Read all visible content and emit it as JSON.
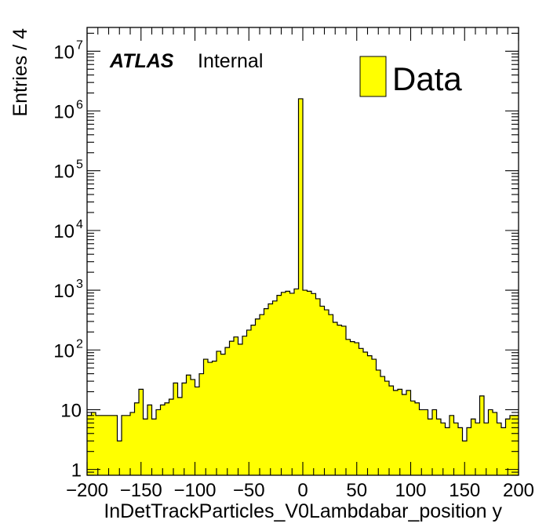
{
  "chart_data": {
    "type": "bar",
    "histogram": true,
    "xlabel": "InDetTrackParticles_V0Lambdabar_position y",
    "ylabel": "Entries / 4",
    "log_y": true,
    "xlim": [
      -200,
      200
    ],
    "ylim": [
      0.8,
      25000000
    ],
    "bin_width": 4,
    "x_ticks": [
      -200,
      -150,
      -100,
      -50,
      0,
      50,
      100,
      150,
      200
    ],
    "x_tick_labels": [
      "−200",
      "−150",
      "−100",
      "−50",
      "0",
      "50",
      "100",
      "150",
      "200"
    ],
    "y_ticks": [
      {
        "value": 1,
        "base": "1",
        "exp": ""
      },
      {
        "value": 10,
        "base": "10",
        "exp": ""
      },
      {
        "value": 100,
        "base": "10",
        "exp": "2"
      },
      {
        "value": 1000,
        "base": "10",
        "exp": "3"
      },
      {
        "value": 10000,
        "base": "10",
        "exp": "4"
      },
      {
        "value": 100000,
        "base": "10",
        "exp": "5"
      },
      {
        "value": 1000000,
        "base": "10",
        "exp": "6"
      },
      {
        "value": 10000000,
        "base": "10",
        "exp": "7"
      }
    ],
    "atlas_label": "ATLAS",
    "atlas_sublabel": "Internal",
    "legend": {
      "label": "Data",
      "placement": "top-right"
    },
    "fill_color": "#ffff00",
    "line_color": "#000000",
    "series": [
      {
        "name": "Data",
        "bin_low_edges": [
          -200,
          -196,
          -192,
          -188,
          -184,
          -180,
          -176,
          -172,
          -168,
          -164,
          -160,
          -156,
          -152,
          -148,
          -144,
          -140,
          -136,
          -132,
          -128,
          -124,
          -120,
          -116,
          -112,
          -108,
          -104,
          -100,
          -96,
          -92,
          -88,
          -84,
          -80,
          -76,
          -72,
          -68,
          -64,
          -60,
          -56,
          -52,
          -48,
          -44,
          -40,
          -36,
          -32,
          -28,
          -24,
          -20,
          -16,
          -12,
          -8,
          -4,
          0,
          4,
          8,
          12,
          16,
          20,
          24,
          28,
          32,
          36,
          40,
          44,
          48,
          52,
          56,
          60,
          64,
          68,
          72,
          76,
          80,
          84,
          88,
          92,
          96,
          100,
          104,
          108,
          112,
          116,
          120,
          124,
          128,
          132,
          136,
          140,
          144,
          148,
          152,
          156,
          160,
          164,
          168,
          172,
          176,
          180,
          184,
          188,
          192,
          196
        ],
        "values": [
          8,
          9,
          8,
          8,
          8,
          8,
          8,
          3,
          8,
          8,
          9,
          13,
          22,
          7,
          12,
          7,
          10,
          12,
          13,
          15,
          28,
          16,
          28,
          38,
          32,
          24,
          40,
          70,
          62,
          65,
          95,
          85,
          110,
          140,
          165,
          125,
          170,
          215,
          260,
          330,
          390,
          490,
          590,
          660,
          820,
          920,
          960,
          890,
          1050,
          1600000,
          1000,
          960,
          880,
          720,
          540,
          470,
          390,
          290,
          260,
          250,
          150,
          138,
          132,
          106,
          92,
          80,
          70,
          46,
          36,
          30,
          25,
          21,
          22,
          18,
          21,
          14,
          13,
          10,
          10,
          7,
          10,
          7,
          6,
          5,
          8,
          6,
          5,
          3,
          5,
          7,
          6,
          17,
          6,
          10,
          9,
          6,
          5,
          7,
          8,
          8
        ]
      }
    ]
  }
}
